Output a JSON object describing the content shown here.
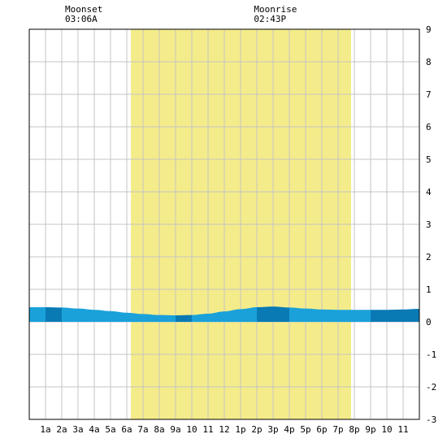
{
  "chart_data": {
    "type": "area",
    "moon_events": [
      {
        "label": "Moonset",
        "time": "03:06A",
        "hour": 3.1
      },
      {
        "label": "Moonrise",
        "time": "02:43P",
        "hour": 14.72
      }
    ],
    "daylight": {
      "start_hour": 6.25,
      "end_hour": 19.8,
      "color": "#f4ec8a"
    },
    "x_ticks": [
      {
        "hour": 1,
        "label": "1a"
      },
      {
        "hour": 2,
        "label": "2a"
      },
      {
        "hour": 3,
        "label": "3a"
      },
      {
        "hour": 4,
        "label": "4a"
      },
      {
        "hour": 5,
        "label": "5a"
      },
      {
        "hour": 6,
        "label": "6a"
      },
      {
        "hour": 7,
        "label": "7a"
      },
      {
        "hour": 8,
        "label": "8a"
      },
      {
        "hour": 9,
        "label": "9a"
      },
      {
        "hour": 10,
        "label": "10"
      },
      {
        "hour": 11,
        "label": "11"
      },
      {
        "hour": 12,
        "label": "12"
      },
      {
        "hour": 13,
        "label": "1p"
      },
      {
        "hour": 14,
        "label": "2p"
      },
      {
        "hour": 15,
        "label": "3p"
      },
      {
        "hour": 16,
        "label": "4p"
      },
      {
        "hour": 17,
        "label": "5p"
      },
      {
        "hour": 18,
        "label": "6p"
      },
      {
        "hour": 19,
        "label": "7p"
      },
      {
        "hour": 20,
        "label": "8p"
      },
      {
        "hour": 21,
        "label": "9p"
      },
      {
        "hour": 22,
        "label": "10"
      },
      {
        "hour": 23,
        "label": "11"
      }
    ],
    "y_ticks": [
      9,
      8,
      7,
      6,
      5,
      4,
      3,
      2,
      1,
      0,
      -1,
      -2,
      -3
    ],
    "xlim": [
      0,
      24
    ],
    "ylim": [
      -3,
      9
    ],
    "grid": true,
    "tide": {
      "x": [
        0,
        1,
        2,
        3,
        4,
        5,
        6,
        7,
        8,
        9,
        10,
        11,
        12,
        13,
        14,
        15,
        16,
        17,
        18,
        19,
        20,
        21,
        22,
        23,
        24
      ],
      "y": [
        0.45,
        0.45,
        0.44,
        0.41,
        0.37,
        0.33,
        0.28,
        0.24,
        0.21,
        0.2,
        0.21,
        0.25,
        0.32,
        0.39,
        0.45,
        0.47,
        0.44,
        0.41,
        0.38,
        0.37,
        0.37,
        0.37,
        0.37,
        0.38,
        0.4
      ]
    },
    "fill_colors": {
      "light": "#1aa1da",
      "dark": "#0a7ab4"
    }
  }
}
